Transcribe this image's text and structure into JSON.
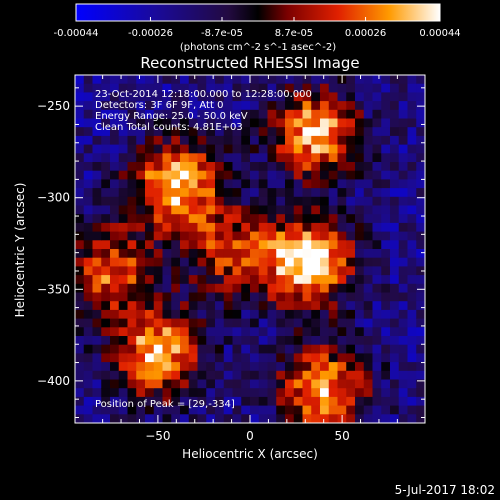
{
  "chart_data": {
    "type": "heatmap",
    "title": "Reconstructed RHESSI Image",
    "colorbar": {
      "ticks": [
        "-0.00044",
        "-0.00026",
        "-8.7e-05",
        "8.7e-05",
        "0.00026",
        "0.00044"
      ],
      "tick_values": [
        -0.00044,
        -0.00026,
        -8.7e-05,
        8.7e-05,
        0.00026,
        0.00044
      ],
      "range": [
        -0.00044,
        0.00044
      ],
      "units": "(photons cm^-2 s^-1 asec^-2)"
    },
    "xlabel": "Heliocentric X (arcsec)",
    "ylabel": "Heliocentric Y (arcsec)",
    "xlim": [
      -95,
      95
    ],
    "ylim": [
      -423,
      -233
    ],
    "xticks": [
      -50,
      0,
      50
    ],
    "yticks": [
      -250,
      -300,
      -350,
      -400
    ],
    "annotations": [
      "23-Oct-2014 12:18:00.000 to 12:28:00.000",
      "Detectors: 3F 6F 9F, Att 0",
      "Energy Range: 25.0 - 50.0 keV",
      "Clean    Total counts: 4.81E+03"
    ],
    "peak_text": "Position of Peak = [29,-334]",
    "sources": [
      {
        "x": -40,
        "y": -293,
        "value": 0.0004
      },
      {
        "x": 32,
        "y": -335,
        "value": 0.00044
      },
      {
        "x": 35,
        "y": -265,
        "value": 0.00036
      },
      {
        "x": -50,
        "y": -385,
        "value": 0.00036
      },
      {
        "x": 40,
        "y": -405,
        "value": 0.00034
      },
      {
        "x": -75,
        "y": -340,
        "value": 0.00024
      },
      {
        "x": -10,
        "y": -330,
        "value": 0.00018
      }
    ],
    "grid": false
  },
  "footer": {
    "date": "5-Jul-2017 18:02"
  }
}
